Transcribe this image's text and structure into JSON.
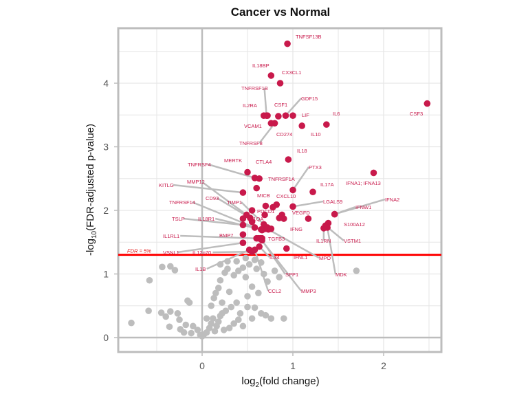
{
  "chart_data": {
    "type": "scatter",
    "title": "Cancer vs Normal",
    "xlabel": "log2(fold change)",
    "xlabel_parts": {
      "base": "log",
      "sub": "2",
      "rest": "(fold change)"
    },
    "ylabel": "-log10(FDR-adjusted p-value)",
    "ylabel_parts": {
      "pre": "-log",
      "sub": "10",
      "rest": "(FDR-adjusted p-value)"
    },
    "xlim": [
      -0.92,
      2.64
    ],
    "ylim": [
      -0.24,
      4.83
    ],
    "x_ticks": [
      0,
      1,
      2
    ],
    "y_ticks": [
      0,
      1,
      2,
      3,
      4
    ],
    "grid": true,
    "threshold": {
      "label": "FDR = 5%",
      "y": 1.301,
      "color": "#ff0000"
    },
    "colors": {
      "significant": "#c8194b",
      "not_significant": "#bdbdbd",
      "connector": "#bdbdbd"
    },
    "significant_points": [
      {
        "gene": "TNFSF13B",
        "x": 0.94,
        "y": 4.62
      },
      {
        "gene": "IL18BP",
        "x": 0.76,
        "y": 4.12
      },
      {
        "gene": "CX3CL1",
        "x": 0.86,
        "y": 4.0
      },
      {
        "gene": "CSF3",
        "x": 2.48,
        "y": 3.68
      },
      {
        "gene": "TNFRSF1B",
        "x": 0.71,
        "y": 3.49
      },
      {
        "gene": "IL2RA",
        "x": 0.68,
        "y": 3.49
      },
      {
        "gene": "CSF1",
        "x": 0.84,
        "y": 3.48
      },
      {
        "gene": "GDF15",
        "x": 0.92,
        "y": 3.49
      },
      {
        "gene": "LIF",
        "x": 1.0,
        "y": 3.49
      },
      {
        "gene": "IL6",
        "x": 1.37,
        "y": 3.35
      },
      {
        "gene": "VCAM1",
        "x": 0.76,
        "y": 3.37
      },
      {
        "gene": "TNFRSF8",
        "x": 0.8,
        "y": 3.37
      },
      {
        "gene": "CD274",
        "x": 1.1,
        "y": 3.33
      },
      {
        "gene": "IL10",
        "x": 0.72,
        "y": 3.49
      },
      {
        "gene": "IL18",
        "x": 0.95,
        "y": 2.8
      },
      {
        "gene": "IFNA1; IFNA13",
        "x": 1.89,
        "y": 2.59
      },
      {
        "gene": "MERTK",
        "x": 0.5,
        "y": 2.6
      },
      {
        "gene": "TNFRSF4",
        "x": 0.58,
        "y": 2.51
      },
      {
        "gene": "CTLA4",
        "x": 0.63,
        "y": 2.5
      },
      {
        "gene": "PTX3",
        "x": 1.0,
        "y": 2.32
      },
      {
        "gene": "TNFRSF1A",
        "x": 0.6,
        "y": 2.35
      },
      {
        "gene": "IL17A",
        "x": 1.22,
        "y": 2.29
      },
      {
        "gene": "KITLG",
        "x": 0.45,
        "y": 2.28
      },
      {
        "gene": "MICB",
        "x": 0.7,
        "y": 2.07
      },
      {
        "gene": "CXCL10",
        "x": 0.82,
        "y": 2.09
      },
      {
        "gene": "LGALS9",
        "x": 1.0,
        "y": 2.06
      },
      {
        "gene": "IFNA2",
        "x": 1.46,
        "y": 1.94
      },
      {
        "gene": "IFNW1",
        "x": 1.46,
        "y": 1.94
      },
      {
        "gene": "VEGFD",
        "x": 1.17,
        "y": 1.87
      },
      {
        "gene": "PDCD1",
        "x": 0.69,
        "y": 1.93
      },
      {
        "gene": "MMP12",
        "x": 0.49,
        "y": 1.93
      },
      {
        "gene": "CD93",
        "x": 0.53,
        "y": 1.88
      },
      {
        "gene": "TIMP1",
        "x": 0.68,
        "y": 1.78
      },
      {
        "gene": "C1QA",
        "x": 0.55,
        "y": 1.82
      },
      {
        "gene": "TNFRSF14",
        "x": 0.58,
        "y": 1.73
      },
      {
        "gene": "S100A12",
        "x": 1.39,
        "y": 1.8
      },
      {
        "gene": "VSTM1",
        "x": 1.36,
        "y": 1.76
      },
      {
        "gene": "IL1RN",
        "x": 1.34,
        "y": 1.72
      },
      {
        "gene": "MDK",
        "x": 1.38,
        "y": 1.73
      },
      {
        "gene": "TSLP",
        "x": 0.45,
        "y": 1.77
      },
      {
        "gene": "IL18R1",
        "x": 0.65,
        "y": 1.7
      },
      {
        "gene": "IFNG",
        "x": 0.69,
        "y": 1.71
      },
      {
        "gene": "MPO",
        "x": 0.73,
        "y": 1.7
      },
      {
        "gene": "IL1RL1",
        "x": 0.6,
        "y": 1.56
      },
      {
        "gene": "BMP7",
        "x": 0.62,
        "y": 1.56
      },
      {
        "gene": "TGFB3",
        "x": 0.66,
        "y": 1.56
      },
      {
        "gene": "VSNL1",
        "x": 0.45,
        "y": 1.49
      },
      {
        "gene": "IL12p70",
        "x": 0.55,
        "y": 1.35
      },
      {
        "gene": "IL1B",
        "x": 0.52,
        "y": 1.38
      },
      {
        "gene": "IL34",
        "x": 0.63,
        "y": 1.43
      },
      {
        "gene": "IFNL1",
        "x": 0.93,
        "y": 1.4
      },
      {
        "gene": "SPP1",
        "x": 0.66,
        "y": 1.53
      },
      {
        "gene": "MMP3",
        "x": 0.64,
        "y": 1.56
      },
      {
        "gene": "CCL2",
        "x": 0.58,
        "y": 1.38
      },
      {
        "gene": "",
        "x": 0.45,
        "y": 1.87
      },
      {
        "gene": "",
        "x": 0.45,
        "y": 1.62
      },
      {
        "gene": "",
        "x": 0.55,
        "y": 2.0
      },
      {
        "gene": "",
        "x": 0.85,
        "y": 1.88
      },
      {
        "gene": "",
        "x": 0.88,
        "y": 1.93
      },
      {
        "gene": "",
        "x": 0.9,
        "y": 1.87
      },
      {
        "gene": "",
        "x": 0.66,
        "y": 1.69
      },
      {
        "gene": "",
        "x": 0.72,
        "y": 1.73
      },
      {
        "gene": "",
        "x": 0.76,
        "y": 1.71
      },
      {
        "gene": "",
        "x": 0.78,
        "y": 2.05
      }
    ],
    "nonsignificant_points": [
      {
        "x": -0.44,
        "y": 1.11
      },
      {
        "x": -0.35,
        "y": 1.12
      },
      {
        "x": -0.3,
        "y": 1.06
      },
      {
        "x": -0.58,
        "y": 0.9
      },
      {
        "x": -0.59,
        "y": 0.42
      },
      {
        "x": -0.45,
        "y": 0.39
      },
      {
        "x": -0.78,
        "y": 0.23
      },
      {
        "x": -0.27,
        "y": 0.38
      },
      {
        "x": -0.25,
        "y": 0.28
      },
      {
        "x": -0.35,
        "y": 0.41
      },
      {
        "x": -0.4,
        "y": 0.33
      },
      {
        "x": -0.16,
        "y": 0.58
      },
      {
        "x": -0.14,
        "y": 0.55
      },
      {
        "x": -0.36,
        "y": 0.17
      },
      {
        "x": -0.24,
        "y": 0.13
      },
      {
        "x": -0.18,
        "y": 0.2
      },
      {
        "x": -0.1,
        "y": 0.18
      },
      {
        "x": -0.05,
        "y": 0.12
      },
      {
        "x": -0.2,
        "y": 0.08
      },
      {
        "x": -0.12,
        "y": 0.07
      },
      {
        "x": -0.02,
        "y": 0.04
      },
      {
        "x": 0.0,
        "y": 0.02
      },
      {
        "x": 0.02,
        "y": 0.05
      },
      {
        "x": 0.05,
        "y": 0.08
      },
      {
        "x": 0.08,
        "y": 0.15
      },
      {
        "x": 0.1,
        "y": 0.22
      },
      {
        "x": 0.12,
        "y": 0.3
      },
      {
        "x": 0.14,
        "y": 0.1
      },
      {
        "x": 0.16,
        "y": 0.18
      },
      {
        "x": 0.18,
        "y": 0.25
      },
      {
        "x": 0.2,
        "y": 0.34
      },
      {
        "x": 0.22,
        "y": 0.38
      },
      {
        "x": 0.24,
        "y": 0.12
      },
      {
        "x": 0.26,
        "y": 0.42
      },
      {
        "x": 0.1,
        "y": 0.5
      },
      {
        "x": 0.13,
        "y": 0.62
      },
      {
        "x": 0.15,
        "y": 0.7
      },
      {
        "x": 0.18,
        "y": 0.78
      },
      {
        "x": 0.2,
        "y": 0.9
      },
      {
        "x": 0.22,
        "y": 0.55
      },
      {
        "x": 0.25,
        "y": 1.02
      },
      {
        "x": 0.28,
        "y": 1.08
      },
      {
        "x": 0.3,
        "y": 0.72
      },
      {
        "x": 0.32,
        "y": 0.48
      },
      {
        "x": 0.35,
        "y": 0.98
      },
      {
        "x": 0.38,
        "y": 0.55
      },
      {
        "x": 0.4,
        "y": 1.05
      },
      {
        "x": 0.42,
        "y": 0.38
      },
      {
        "x": 0.45,
        "y": 1.1
      },
      {
        "x": 0.48,
        "y": 0.95
      },
      {
        "x": 0.5,
        "y": 0.65
      },
      {
        "x": 0.52,
        "y": 1.15
      },
      {
        "x": 0.55,
        "y": 0.8
      },
      {
        "x": 0.58,
        "y": 0.47
      },
      {
        "x": 0.6,
        "y": 1.08
      },
      {
        "x": 0.62,
        "y": 0.7
      },
      {
        "x": 0.65,
        "y": 0.38
      },
      {
        "x": 0.68,
        "y": 1.0
      },
      {
        "x": 0.72,
        "y": 0.88
      },
      {
        "x": 0.76,
        "y": 0.3
      },
      {
        "x": 0.8,
        "y": 1.05
      },
      {
        "x": 0.85,
        "y": 0.95
      },
      {
        "x": 0.4,
        "y": 0.28
      },
      {
        "x": 0.35,
        "y": 0.22
      },
      {
        "x": 0.3,
        "y": 0.15
      },
      {
        "x": 0.45,
        "y": 0.18
      },
      {
        "x": 1.7,
        "y": 1.05
      },
      {
        "x": 0.9,
        "y": 0.3
      },
      {
        "x": 0.55,
        "y": 0.3
      },
      {
        "x": 0.7,
        "y": 0.35
      },
      {
        "x": 0.5,
        "y": 0.48
      },
      {
        "x": 0.05,
        "y": 0.3
      },
      {
        "x": 0.28,
        "y": 1.2
      },
      {
        "x": 0.38,
        "y": 1.2
      },
      {
        "x": 0.48,
        "y": 1.25
      },
      {
        "x": 0.58,
        "y": 1.22
      },
      {
        "x": 0.65,
        "y": 1.18
      },
      {
        "x": 0.2,
        "y": 1.15
      }
    ],
    "label_positions_note": "labels placed via repel-style offsets with grey connector lines"
  }
}
